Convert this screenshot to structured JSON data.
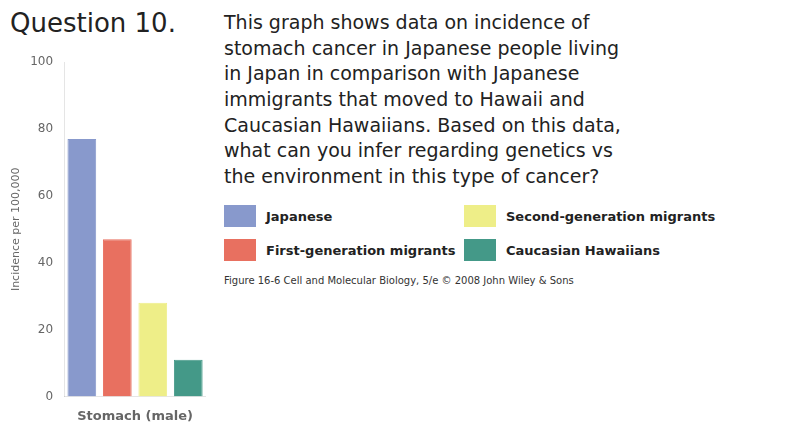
{
  "chart_data": {
    "type": "bar",
    "title": "Question 10.",
    "annotations": [
      "This graph shows data on incidence of\nstomach cancer in Japanese people living\nin Japan in comparison with Japanese\nimmigrants that moved to Hawaii and\nCaucasian Hawaiians. Based on this data,\nwhat can you infer regarding genetics vs\nthe environment in this type of cancer?",
      "Figure 16-6  Cell and Molecular Biology, 5/e © 2008 John Wiley & Sons"
    ],
    "categories": [
      "Japanese",
      "First-generation migrants",
      "Second-generation migrants",
      "Caucasian Hawaiians"
    ],
    "values": [
      77,
      47,
      28,
      11
    ],
    "colors": [
      "#8899cc",
      "#e87060",
      "#eeee88",
      "#449988"
    ],
    "xlabel": "Stomach (male)",
    "ylabel": "Incidence per 100,000",
    "ylim": [
      0,
      100
    ],
    "yticks": [
      0,
      20,
      40,
      60,
      80,
      100
    ],
    "grid": false,
    "legend": "right",
    "tick_labels": "y"
  }
}
